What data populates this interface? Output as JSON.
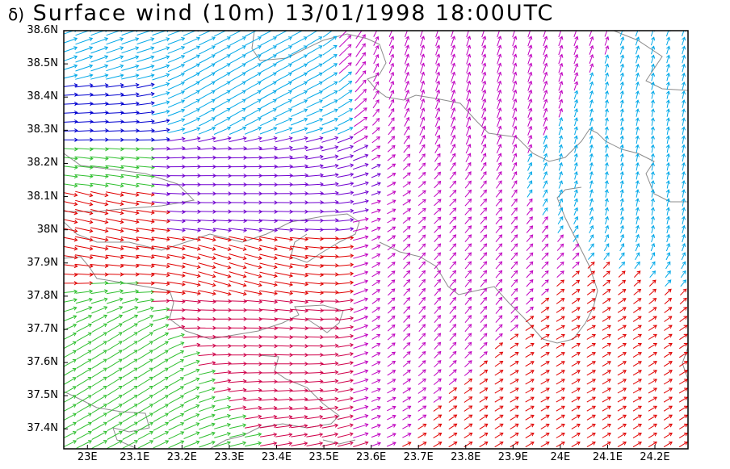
{
  "title": {
    "panel_letter": "δ)",
    "text": "Surface wind (10m) 13/01/1998 18:00UTC"
  },
  "chart_data": {
    "type": "vector_field",
    "x_axis": {
      "range": [
        22.95,
        24.27
      ],
      "ticks": [
        {
          "value": 23.0,
          "label": "23E"
        },
        {
          "value": 23.1,
          "label": "23.1E"
        },
        {
          "value": 23.2,
          "label": "23.2E"
        },
        {
          "value": 23.3,
          "label": "23.3E"
        },
        {
          "value": 23.4,
          "label": "23.4E"
        },
        {
          "value": 23.5,
          "label": "23.5E"
        },
        {
          "value": 23.6,
          "label": "23.6E"
        },
        {
          "value": 23.7,
          "label": "23.7E"
        },
        {
          "value": 23.8,
          "label": "23.8E"
        },
        {
          "value": 23.9,
          "label": "23.9E"
        },
        {
          "value": 24.0,
          "label": "24E"
        },
        {
          "value": 24.1,
          "label": "24.1E"
        },
        {
          "value": 24.2,
          "label": "24.2E"
        }
      ]
    },
    "y_axis": {
      "range": [
        37.34,
        38.6
      ],
      "ticks": [
        {
          "value": 38.6,
          "label": "38.6N"
        },
        {
          "value": 38.5,
          "label": "38.5N"
        },
        {
          "value": 38.4,
          "label": "38.4N"
        },
        {
          "value": 38.3,
          "label": "38.3N"
        },
        {
          "value": 38.2,
          "label": "38.2N"
        },
        {
          "value": 38.1,
          "label": "38.1N"
        },
        {
          "value": 38.0,
          "label": "38N"
        },
        {
          "value": 37.9,
          "label": "37.9N"
        },
        {
          "value": 37.8,
          "label": "37.8N"
        },
        {
          "value": 37.7,
          "label": "37.7N"
        },
        {
          "value": 37.6,
          "label": "37.6N"
        },
        {
          "value": 37.5,
          "label": "37.5N"
        },
        {
          "value": 37.4,
          "label": "37.4N"
        }
      ]
    },
    "grid": false,
    "coastline_color": "#8c8c8c",
    "arrow_colors": {
      "strong_west": "#0000d0",
      "cyan": "#00a8e8",
      "teal": "#00c0b0",
      "green": "#30c030",
      "yellow": "#e8c800",
      "orange": "#f08020",
      "red": "#e00000",
      "crimson": "#d0004a",
      "magenta": "#c000c0",
      "purple": "#7000d0"
    },
    "wind_field_description_points": [
      {
        "lon": 23.0,
        "lat": 38.55,
        "u": 1.0,
        "v": 0.35,
        "color": "cyan"
      },
      {
        "lon": 23.3,
        "lat": 38.4,
        "u": 0.9,
        "v": 0.5,
        "color": "cyan"
      },
      {
        "lon": 23.0,
        "lat": 38.35,
        "u": 1.0,
        "v": 0.05,
        "color": "strong_west"
      },
      {
        "lon": 23.0,
        "lat": 38.15,
        "u": 1.0,
        "v": -0.1,
        "color": "green"
      },
      {
        "lon": 23.0,
        "lat": 38.1,
        "u": 1.0,
        "v": -0.25,
        "color": "red"
      },
      {
        "lon": 23.3,
        "lat": 38.15,
        "u": 1.0,
        "v": 0.0,
        "color": "purple"
      },
      {
        "lon": 23.3,
        "lat": 37.85,
        "u": 1.0,
        "v": -0.3,
        "color": "red"
      },
      {
        "lon": 23.3,
        "lat": 37.75,
        "u": 1.0,
        "v": 0.0,
        "color": "crimson"
      },
      {
        "lon": 23.1,
        "lat": 37.6,
        "u": 0.8,
        "v": 0.5,
        "color": "green"
      },
      {
        "lon": 23.8,
        "lat": 38.5,
        "u": 0.3,
        "v": 0.9,
        "color": "magenta"
      },
      {
        "lon": 23.8,
        "lat": 37.8,
        "u": 0.5,
        "v": 0.6,
        "color": "magenta"
      },
      {
        "lon": 24.0,
        "lat": 37.6,
        "u": 0.7,
        "v": 0.4,
        "color": "red"
      },
      {
        "lon": 24.2,
        "lat": 38.2,
        "u": 0.1,
        "v": 0.5,
        "color": "cyan"
      }
    ]
  }
}
